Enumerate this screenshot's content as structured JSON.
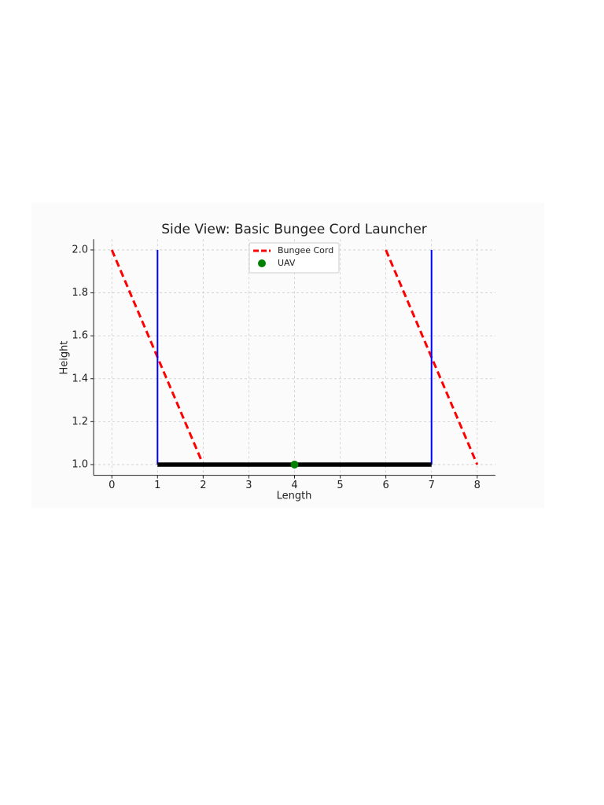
{
  "chart_data": {
    "type": "line",
    "title": "Side View: Basic Bungee Cord Launcher",
    "x_label": "Length",
    "y_label": "Height",
    "xlim": [
      -0.4,
      8.4
    ],
    "ylim": [
      0.95,
      2.05
    ],
    "xticks": [
      0,
      1,
      2,
      3,
      4,
      5,
      6,
      7,
      8
    ],
    "yticks": [
      {
        "value": 1,
        "label": "1.0"
      },
      1.2,
      1.4,
      1.6,
      1.8,
      {
        "value": 2,
        "label": "2.0"
      }
    ],
    "grid": true,
    "legend": "upper center",
    "series": [
      {
        "name": "Bungee Cord",
        "color": "#ff0000",
        "style": "dashed",
        "x": [
          [
            0,
            2
          ],
          [
            6,
            8
          ]
        ],
        "values": [
          [
            2,
            1
          ],
          [
            2,
            1
          ]
        ]
      },
      {
        "color": "#0000ff",
        "style": "solid",
        "x": [
          [
            1,
            1
          ],
          [
            7,
            7
          ]
        ],
        "values": [
          [
            1,
            2
          ],
          [
            1,
            2
          ]
        ]
      },
      {
        "color": "#000000",
        "style": "thick",
        "x": [
          [
            1,
            7
          ]
        ],
        "values": [
          [
            1,
            1
          ]
        ]
      },
      {
        "name": "UAV",
        "color": "#008000",
        "style": "marker",
        "x": [
          [
            4
          ]
        ],
        "values": [
          [
            1
          ]
        ]
      }
    ]
  }
}
